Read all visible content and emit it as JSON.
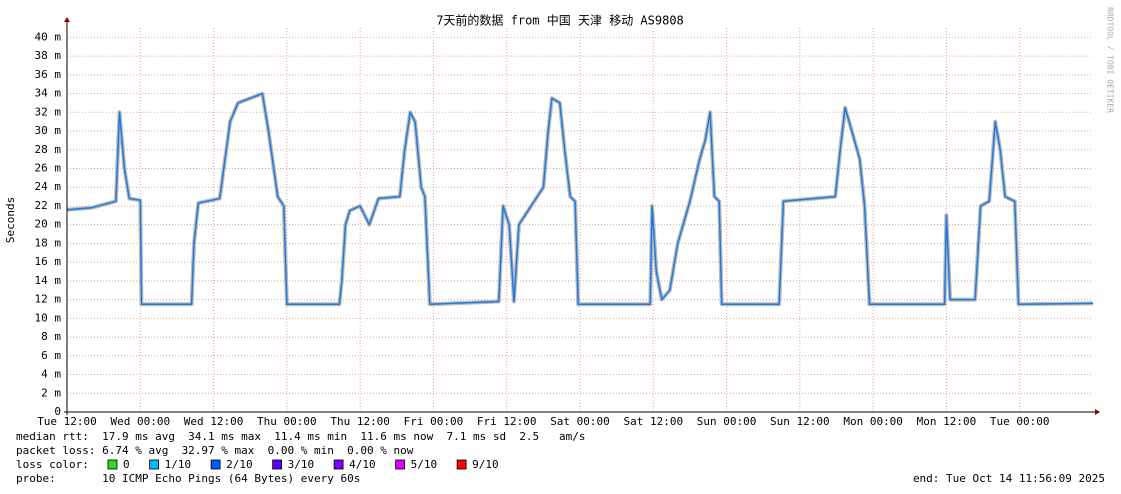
{
  "chart_data": {
    "type": "line",
    "title": "7天前的数据 from 中国 天津 移动 AS9808",
    "ylabel": "Seconds",
    "watermark": "RRDTOOL / TOBI OETIKER",
    "xlim": [
      0,
      168
    ],
    "xticks": [
      {
        "value": 0,
        "label": "Tue 12:00"
      },
      {
        "value": 12,
        "label": "Wed 00:00"
      },
      {
        "value": 24,
        "label": "Wed 12:00"
      },
      {
        "value": 36,
        "label": "Thu 00:00"
      },
      {
        "value": 48,
        "label": "Thu 12:00"
      },
      {
        "value": 60,
        "label": "Fri 00:00"
      },
      {
        "value": 72,
        "label": "Fri 12:00"
      },
      {
        "value": 84,
        "label": "Sat 00:00"
      },
      {
        "value": 96,
        "label": "Sat 12:00"
      },
      {
        "value": 108,
        "label": "Sun 00:00"
      },
      {
        "value": 120,
        "label": "Sun 12:00"
      },
      {
        "value": 132,
        "label": "Mon 00:00"
      },
      {
        "value": 144,
        "label": "Mon 12:00"
      },
      {
        "value": 156,
        "label": "Tue 00:00"
      }
    ],
    "ylim": [
      0,
      0.041
    ],
    "yticks": [
      0,
      {
        "value": 0.002,
        "label": "2 m"
      },
      {
        "value": 0.004,
        "label": "4 m"
      },
      {
        "value": 0.006,
        "label": "6 m"
      },
      {
        "value": 0.008,
        "label": "8 m"
      },
      {
        "value": 0.01,
        "label": "10 m"
      },
      {
        "value": 0.012,
        "label": "12 m"
      },
      {
        "value": 0.014,
        "label": "14 m"
      },
      {
        "value": 0.016,
        "label": "16 m"
      },
      {
        "value": 0.018,
        "label": "18 m"
      },
      {
        "value": 0.02,
        "label": "20 m"
      },
      {
        "value": 0.022,
        "label": "22 m"
      },
      {
        "value": 0.024,
        "label": "24 m"
      },
      {
        "value": 0.026,
        "label": "26 m"
      },
      {
        "value": 0.028,
        "label": "28 m"
      },
      {
        "value": 0.03,
        "label": "30 m"
      },
      {
        "value": 0.032,
        "label": "32 m"
      },
      {
        "value": 0.034,
        "label": "34 m"
      },
      {
        "value": 0.036,
        "label": "36 m"
      },
      {
        "value": 0.038,
        "label": "38 m"
      },
      {
        "value": 0.04,
        "label": "40 m"
      }
    ],
    "grid": true,
    "x": [
      0,
      4,
      8,
      8.6,
      9.4,
      10.2,
      12,
      12.2,
      20.4,
      20.8,
      21.5,
      25,
      26.7,
      28,
      32,
      33,
      34.5,
      35.5,
      36,
      44.6,
      45,
      45.6,
      46.3,
      48,
      49.5,
      51,
      54.5,
      55.3,
      56.2,
      57,
      58,
      58.6,
      59.4,
      70.7,
      71.4,
      72.4,
      73.2,
      74,
      76,
      78,
      78.8,
      79.4,
      80.7,
      81.5,
      82.4,
      83.2,
      83.7,
      95.5,
      95.8,
      96.5,
      97.4,
      98.7,
      100,
      102,
      103.6,
      104.5,
      105.3,
      106,
      106.8,
      107.2,
      116.6,
      117.3,
      125.8,
      126.6,
      127.4,
      128.5,
      129.8,
      130.6,
      131.4,
      143.7,
      144,
      144.6,
      148.7,
      149.6,
      151,
      152,
      152.8,
      153.6,
      155.2,
      155.8,
      168
    ],
    "series": [
      {
        "color": "#1f7ae0",
        "values": [
          0.0216,
          0.0218,
          0.0225,
          0.032,
          0.026,
          0.0228,
          0.0226,
          0.0115,
          0.0115,
          0.018,
          0.0223,
          0.0228,
          0.031,
          0.033,
          0.034,
          0.03,
          0.023,
          0.022,
          0.0115,
          0.0115,
          0.014,
          0.02,
          0.0215,
          0.022,
          0.02,
          0.0228,
          0.023,
          0.028,
          0.032,
          0.031,
          0.024,
          0.023,
          0.0115,
          0.0118,
          0.022,
          0.02,
          0.0118,
          0.02,
          0.022,
          0.024,
          0.03,
          0.0335,
          0.033,
          0.028,
          0.023,
          0.0225,
          0.0115,
          0.0115,
          0.022,
          0.015,
          0.012,
          0.013,
          0.018,
          0.0225,
          0.027,
          0.029,
          0.032,
          0.023,
          0.0225,
          0.0115,
          0.0115,
          0.0225,
          0.023,
          0.028,
          0.0325,
          0.03,
          0.027,
          0.022,
          0.0115,
          0.0115,
          0.021,
          0.012,
          0.012,
          0.022,
          0.0225,
          0.031,
          0.028,
          0.023,
          0.0225,
          0.0115,
          0.0116
        ]
      }
    ],
    "stats": [
      "median rtt:  17.9 ms avg  34.1 ms max  11.4 ms min  11.6 ms now  7.1 ms sd  2.5   am/s",
      "packet loss: 6.74 % avg  32.97 % max  0.00 % min  0.00 % now"
    ],
    "loss_legend_label": "loss color:",
    "loss_colors": [
      {
        "label": "0",
        "color": "#26e01e"
      },
      {
        "label": "1/10",
        "color": "#00b8ff"
      },
      {
        "label": "2/10",
        "color": "#0059ff"
      },
      {
        "label": "3/10",
        "color": "#5e00ff"
      },
      {
        "label": "4/10",
        "color": "#7e00ff"
      },
      {
        "label": "5/10",
        "color": "#dd00ff"
      },
      {
        "label": "9/10",
        "color": "#ff0000"
      }
    ],
    "probe": "probe:       10 ICMP Echo Pings (64 Bytes) every 60s",
    "end": "end: Tue Oct 14 11:56:09 2025"
  }
}
